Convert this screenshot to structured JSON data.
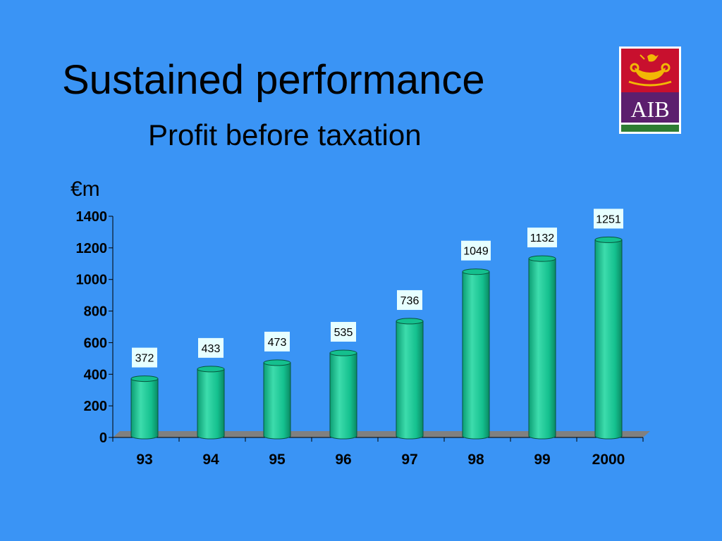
{
  "slide": {
    "title": "Sustained performance",
    "subtitle": "Profit before taxation"
  },
  "logo": {
    "text": "AIB",
    "colors": {
      "top": "#c8102e",
      "bottom": "#5c1f6e",
      "band": "#2e7d32",
      "emblem": "#f2b705"
    }
  },
  "chart_data": {
    "type": "bar",
    "title": "",
    "ylabel": "€m",
    "xlabel": "",
    "categories": [
      "93",
      "94",
      "95",
      "96",
      "97",
      "98",
      "99",
      "2000"
    ],
    "values": [
      372,
      433,
      473,
      535,
      736,
      1049,
      1132,
      1251
    ],
    "data_labels": [
      "372",
      "433",
      "473",
      "535",
      "736",
      "1049",
      "1132",
      "1251"
    ],
    "ylim": [
      0,
      1400
    ],
    "yticks": [
      0,
      200,
      400,
      600,
      800,
      1000,
      1200,
      1400
    ],
    "grid": false,
    "bar_shape": "cylinder",
    "colors": {
      "bar": "#14c08e",
      "bar_dark": "#0a8a63",
      "bar_light": "#3ddcac",
      "floor": "#808080",
      "label_bg": "#e6ffff"
    }
  }
}
